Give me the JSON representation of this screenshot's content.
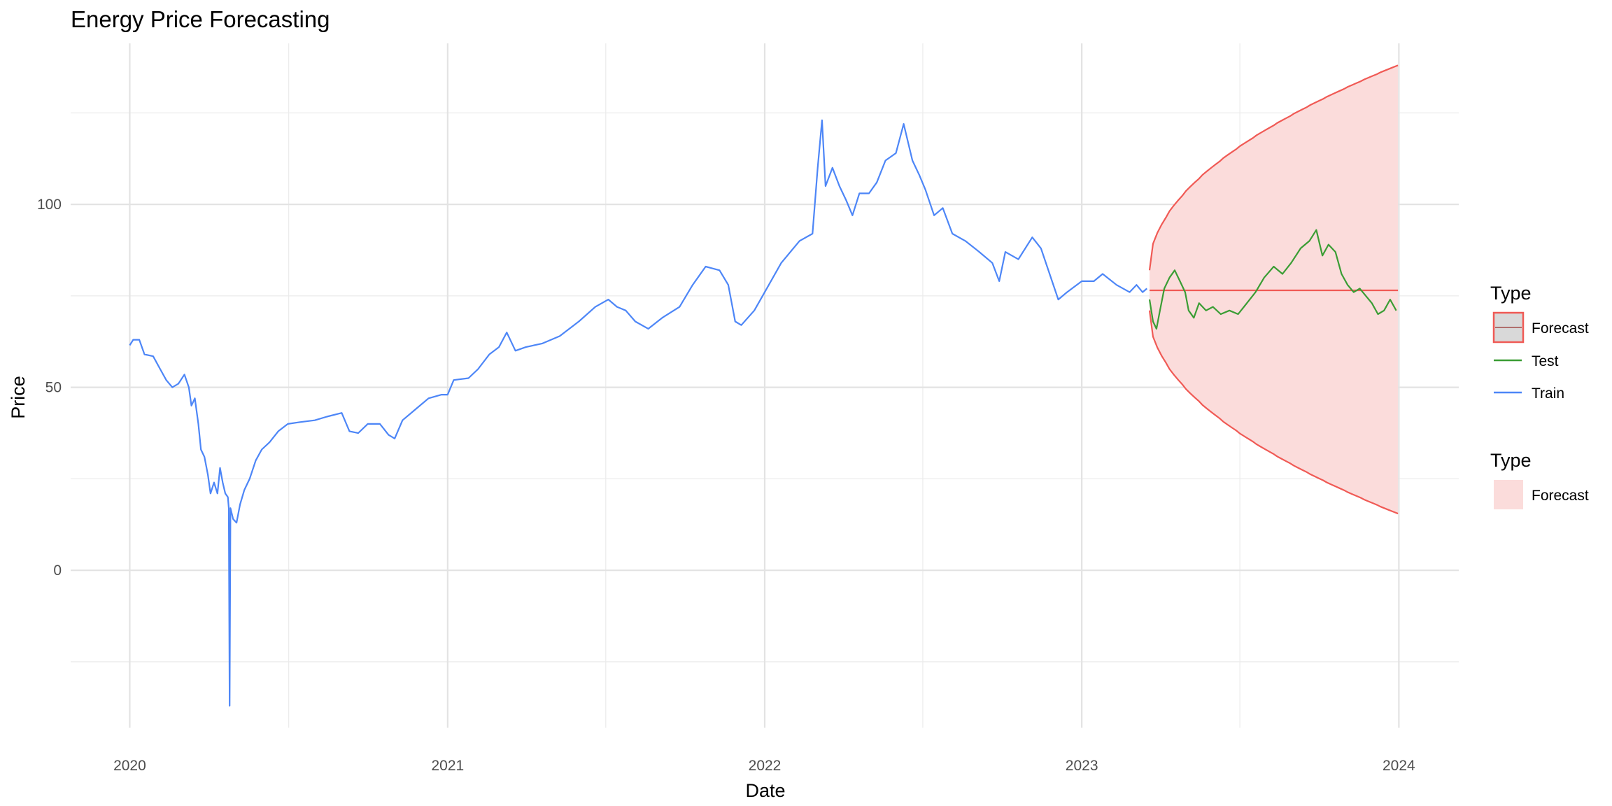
{
  "chart_data": {
    "type": "line",
    "title": "Energy Price Forecasting",
    "xlabel": "Date",
    "ylabel": "Price",
    "x_type": "date",
    "xlim": [
      "2019-10-25",
      "2024-03-10"
    ],
    "ylim": [
      -43,
      144
    ],
    "x_ticks": [
      "2020-01-01",
      "2021-01-01",
      "2022-01-01",
      "2023-01-01",
      "2024-01-01"
    ],
    "x_tick_labels": [
      "2020",
      "2021",
      "2022",
      "2023",
      "2024"
    ],
    "y_ticks": [
      0,
      50,
      100
    ],
    "y_tick_labels": [
      "0",
      "50",
      "100"
    ],
    "grid": true,
    "legend_position": "right",
    "colors": {
      "train": "#4d86f7",
      "test": "#3a9d34",
      "forecast": "#f05a55",
      "forecast_fill": "#fbdcdb"
    },
    "series": [
      {
        "name": "Train",
        "color": "#4d86f7",
        "points": [
          [
            "2020-01-01",
            61.5
          ],
          [
            "2020-01-05",
            63
          ],
          [
            "2020-01-12",
            63
          ],
          [
            "2020-01-18",
            59
          ],
          [
            "2020-01-28",
            58.5
          ],
          [
            "2020-02-05",
            55
          ],
          [
            "2020-02-12",
            52
          ],
          [
            "2020-02-19",
            50
          ],
          [
            "2020-02-26",
            51
          ],
          [
            "2020-03-04",
            53.5
          ],
          [
            "2020-03-09",
            50
          ],
          [
            "2020-03-12",
            45
          ],
          [
            "2020-03-16",
            47
          ],
          [
            "2020-03-20",
            40
          ],
          [
            "2020-03-23",
            33
          ],
          [
            "2020-03-27",
            31
          ],
          [
            "2020-03-31",
            26
          ],
          [
            "2020-04-03",
            21
          ],
          [
            "2020-04-07",
            24
          ],
          [
            "2020-04-11",
            21
          ],
          [
            "2020-04-14",
            28
          ],
          [
            "2020-04-17",
            24
          ],
          [
            "2020-04-20",
            21
          ],
          [
            "2020-04-23",
            20
          ],
          [
            "2020-04-24",
            17
          ],
          [
            "2020-04-25",
            -37
          ],
          [
            "2020-04-26",
            17
          ],
          [
            "2020-04-29",
            14
          ],
          [
            "2020-05-03",
            13
          ],
          [
            "2020-05-07",
            18
          ],
          [
            "2020-05-12",
            22
          ],
          [
            "2020-05-18",
            25
          ],
          [
            "2020-05-25",
            30
          ],
          [
            "2020-06-01",
            33
          ],
          [
            "2020-06-10",
            35
          ],
          [
            "2020-06-20",
            38
          ],
          [
            "2020-07-01",
            40
          ],
          [
            "2020-07-15",
            40.5
          ],
          [
            "2020-08-01",
            41
          ],
          [
            "2020-08-15",
            42
          ],
          [
            "2020-09-01",
            43
          ],
          [
            "2020-09-10",
            38
          ],
          [
            "2020-09-20",
            37.5
          ],
          [
            "2020-10-01",
            40
          ],
          [
            "2020-10-15",
            40
          ],
          [
            "2020-10-25",
            37
          ],
          [
            "2020-11-01",
            36
          ],
          [
            "2020-11-10",
            41
          ],
          [
            "2020-11-25",
            44
          ],
          [
            "2020-12-10",
            47
          ],
          [
            "2020-12-25",
            48
          ],
          [
            "2021-01-01",
            48
          ],
          [
            "2021-01-08",
            52
          ],
          [
            "2021-01-25",
            52.5
          ],
          [
            "2021-02-05",
            55
          ],
          [
            "2021-02-18",
            59
          ],
          [
            "2021-03-01",
            61
          ],
          [
            "2021-03-10",
            65
          ],
          [
            "2021-03-20",
            60
          ],
          [
            "2021-04-01",
            61
          ],
          [
            "2021-04-20",
            62
          ],
          [
            "2021-05-10",
            64
          ],
          [
            "2021-06-01",
            68
          ],
          [
            "2021-06-20",
            72
          ],
          [
            "2021-07-05",
            74
          ],
          [
            "2021-07-15",
            72
          ],
          [
            "2021-07-25",
            71
          ],
          [
            "2021-08-05",
            68
          ],
          [
            "2021-08-20",
            66
          ],
          [
            "2021-09-05",
            69
          ],
          [
            "2021-09-25",
            72
          ],
          [
            "2021-10-10",
            78
          ],
          [
            "2021-10-25",
            83
          ],
          [
            "2021-11-10",
            82
          ],
          [
            "2021-11-20",
            78
          ],
          [
            "2021-11-28",
            68
          ],
          [
            "2021-12-05",
            67
          ],
          [
            "2021-12-20",
            71
          ],
          [
            "2022-01-01",
            76
          ],
          [
            "2022-01-20",
            84
          ],
          [
            "2022-02-10",
            90
          ],
          [
            "2022-02-25",
            92
          ],
          [
            "2022-03-03",
            110
          ],
          [
            "2022-03-08",
            123
          ],
          [
            "2022-03-12",
            105
          ],
          [
            "2022-03-20",
            110
          ],
          [
            "2022-03-28",
            105
          ],
          [
            "2022-04-05",
            101
          ],
          [
            "2022-04-12",
            97
          ],
          [
            "2022-04-20",
            103
          ],
          [
            "2022-05-01",
            103
          ],
          [
            "2022-05-10",
            106
          ],
          [
            "2022-05-20",
            112
          ],
          [
            "2022-06-01",
            114
          ],
          [
            "2022-06-10",
            122
          ],
          [
            "2022-06-20",
            112
          ],
          [
            "2022-06-28",
            108
          ],
          [
            "2022-07-05",
            104
          ],
          [
            "2022-07-15",
            97
          ],
          [
            "2022-07-25",
            99
          ],
          [
            "2022-08-05",
            92
          ],
          [
            "2022-08-20",
            90
          ],
          [
            "2022-09-05",
            87
          ],
          [
            "2022-09-20",
            84
          ],
          [
            "2022-09-28",
            79
          ],
          [
            "2022-10-05",
            87
          ],
          [
            "2022-10-20",
            85
          ],
          [
            "2022-11-05",
            91
          ],
          [
            "2022-11-15",
            88
          ],
          [
            "2022-11-25",
            81
          ],
          [
            "2022-12-05",
            74
          ],
          [
            "2022-12-15",
            76
          ],
          [
            "2023-01-01",
            79
          ],
          [
            "2023-01-15",
            79
          ],
          [
            "2023-01-25",
            81
          ],
          [
            "2023-02-10",
            78
          ],
          [
            "2023-02-25",
            76
          ],
          [
            "2023-03-05",
            78
          ],
          [
            "2023-03-12",
            76
          ],
          [
            "2023-03-17",
            77
          ]
        ]
      },
      {
        "name": "Test",
        "color": "#3a9d34",
        "points": [
          [
            "2023-03-20",
            74
          ],
          [
            "2023-03-24",
            68
          ],
          [
            "2023-03-28",
            66
          ],
          [
            "2023-04-01",
            71
          ],
          [
            "2023-04-06",
            77
          ],
          [
            "2023-04-12",
            80
          ],
          [
            "2023-04-18",
            82
          ],
          [
            "2023-04-24",
            79
          ],
          [
            "2023-04-30",
            76
          ],
          [
            "2023-05-04",
            71
          ],
          [
            "2023-05-10",
            69
          ],
          [
            "2023-05-16",
            73
          ],
          [
            "2023-05-24",
            71
          ],
          [
            "2023-06-01",
            72
          ],
          [
            "2023-06-10",
            70
          ],
          [
            "2023-06-20",
            71
          ],
          [
            "2023-06-30",
            70
          ],
          [
            "2023-07-10",
            73
          ],
          [
            "2023-07-20",
            76
          ],
          [
            "2023-07-30",
            80
          ],
          [
            "2023-08-10",
            83
          ],
          [
            "2023-08-20",
            81
          ],
          [
            "2023-08-30",
            84
          ],
          [
            "2023-09-10",
            88
          ],
          [
            "2023-09-20",
            90
          ],
          [
            "2023-09-28",
            93
          ],
          [
            "2023-10-05",
            86
          ],
          [
            "2023-10-12",
            89
          ],
          [
            "2023-10-20",
            87
          ],
          [
            "2023-10-27",
            81
          ],
          [
            "2023-11-03",
            78
          ],
          [
            "2023-11-10",
            76
          ],
          [
            "2023-11-17",
            77
          ],
          [
            "2023-11-24",
            75
          ],
          [
            "2023-12-01",
            73
          ],
          [
            "2023-12-08",
            70
          ],
          [
            "2023-12-15",
            71
          ],
          [
            "2023-12-22",
            74
          ],
          [
            "2023-12-29",
            71
          ]
        ]
      },
      {
        "name": "Forecast",
        "color": "#f05a55",
        "start": "2023-03-20",
        "end": "2023-12-31",
        "mean": 76.5,
        "lower_start": 71,
        "lower_end": 15.5,
        "upper_start": 82,
        "upper_end": 138
      }
    ],
    "legends": [
      {
        "title": "Type",
        "entries": [
          "Forecast",
          "Test",
          "Train"
        ]
      },
      {
        "title": "Type",
        "entries": [
          "Forecast"
        ]
      }
    ]
  }
}
